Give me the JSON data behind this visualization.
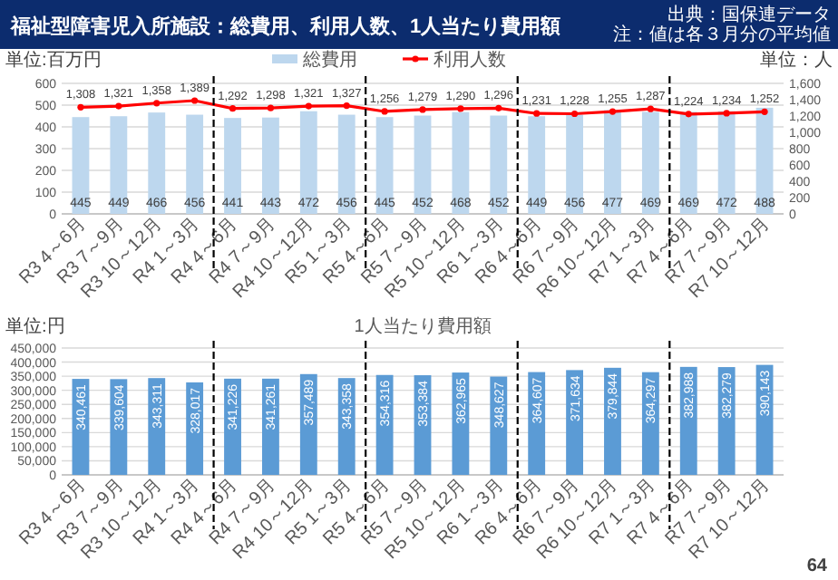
{
  "chart_data": [
    {
      "type": "bar",
      "title": "福祉型障害児入所施設：総費用、利用人数、1人当たり費用額",
      "ylabel": "単位:百万円",
      "y2label": "単位：人",
      "annotations": [
        "出典：国保連データ",
        "注：値は各３月分の平均値"
      ],
      "categories": [
        "R3 4～6月",
        "R3 7～9月",
        "R3 10～12月",
        "R4 1～3月",
        "R4 4～6月",
        "R4 7～9月",
        "R4 10～12月",
        "R5 1～3月",
        "R5 4～6月",
        "R5 7～9月",
        "R5 10～12月",
        "R6 1～3月",
        "R6 4～6月",
        "R6 7～9月",
        "R6 10～12月",
        "R7 1～3月",
        "R7 4～6月",
        "R7 7～9月",
        "R7 10～12月"
      ],
      "series": [
        {
          "name": "総費用",
          "type": "bar",
          "color": "#bdd7ee",
          "values": [
            445,
            449,
            466,
            456,
            441,
            443,
            472,
            456,
            445,
            452,
            468,
            452,
            449,
            456,
            477,
            469,
            469,
            472,
            488
          ]
        },
        {
          "name": "利用人数",
          "type": "line",
          "axis": "y2",
          "color": "#ff0000",
          "marker": "circle",
          "values": [
            1308,
            1321,
            1358,
            1389,
            1292,
            1298,
            1321,
            1327,
            1256,
            1279,
            1290,
            1296,
            1231,
            1228,
            1255,
            1287,
            1224,
            1234,
            1252
          ],
          "value_labels": [
            "1,308",
            "1,321",
            "1,358",
            "1,389",
            "1,292",
            "1,298",
            "1,321",
            "1,327",
            "1,256",
            "1,279",
            "1,290",
            "1,296",
            "1,231",
            "1,228",
            "1,255",
            "1,287",
            "1,224",
            "1,234",
            "1,252"
          ]
        }
      ],
      "ylim": [
        0,
        600
      ],
      "yticks": [
        0,
        100,
        200,
        300,
        400,
        500,
        600
      ],
      "y2lim": [
        0,
        1600
      ],
      "y2ticks": [
        0,
        {
          "value": 200,
          "label": "200"
        },
        {
          "value": 400,
          "label": "400"
        },
        {
          "value": 600,
          "label": "600"
        },
        {
          "value": 800,
          "label": "800"
        },
        {
          "value": 1000,
          "label": "1,000"
        },
        {
          "value": 1200,
          "label": "1,200"
        },
        {
          "value": 1400,
          "label": "1,400"
        },
        {
          "value": 1600,
          "label": "1,600"
        }
      ],
      "grid": "y",
      "legend": "top",
      "data_labels": true
    },
    {
      "type": "bar",
      "title": "1人当たり費用額",
      "ylabel": "単位:円",
      "annotations": [
        "64"
      ],
      "categories": [
        "R3 4～6月",
        "R3 7～9月",
        "R3 10～12月",
        "R4 1～3月",
        "R4 4～6月",
        "R4 7～9月",
        "R4 10～12月",
        "R5 1～3月",
        "R5 4～6月",
        "R5 7～9月",
        "R5 10～12月",
        "R6 1～3月",
        "R6 4～6月",
        "R6 7～9月",
        "R6 10～12月",
        "R7 1～3月",
        "R7 4～6月",
        "R7 7～9月",
        "R7 10～12月"
      ],
      "color": "#5b9bd5",
      "values": [
        340461,
        339604,
        343311,
        328017,
        341226,
        341261,
        357489,
        343358,
        354316,
        353384,
        362965,
        348627,
        364607,
        371634,
        379844,
        364297,
        382988,
        382279,
        390143
      ],
      "value_labels": [
        "340,461",
        "339,604",
        "343,311",
        "328,017",
        "341,226",
        "341,261",
        "357,489",
        "343,358",
        "354,316",
        "353,384",
        "362,965",
        "348,627",
        "364,607",
        "371,634",
        "379,844",
        "364,297",
        "382,988",
        "382,279",
        "390,143"
      ],
      "ylim": [
        0,
        450000
      ],
      "yticks": [
        0,
        {
          "value": 50000,
          "label": "50,000"
        },
        {
          "value": 100000,
          "label": "100,000"
        },
        {
          "value": 150000,
          "label": "150,000"
        },
        {
          "value": 200000,
          "label": "200,000"
        },
        {
          "value": 250000,
          "label": "250,000"
        },
        {
          "value": 300000,
          "label": "300,000"
        },
        {
          "value": 350000,
          "label": "350,000"
        },
        {
          "value": 400000,
          "label": "400,000"
        },
        {
          "value": 450000,
          "label": "450,000"
        }
      ],
      "grid": "y"
    }
  ]
}
